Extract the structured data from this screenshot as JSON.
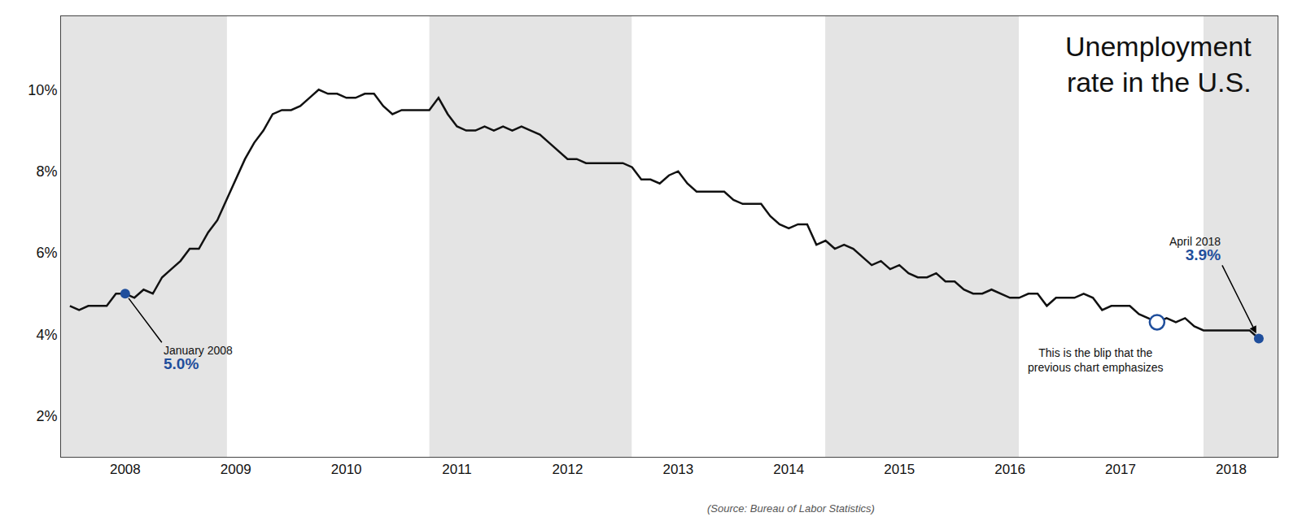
{
  "chart_data": {
    "type": "line",
    "title": "Unemployment\nrate in the U.S.",
    "source": "(Source: Bureau of Labor Statistics)",
    "color": "#111111",
    "grid": false,
    "x": [
      2007.5,
      2007.583333,
      2007.666667,
      2007.75,
      2007.833333,
      2007.916667,
      2008,
      2008.083333,
      2008.166667,
      2008.25,
      2008.333333,
      2008.416667,
      2008.5,
      2008.583333,
      2008.666667,
      2008.75,
      2008.833333,
      2008.916667,
      2009,
      2009.083333,
      2009.166667,
      2009.25,
      2009.333333,
      2009.416667,
      2009.5,
      2009.583333,
      2009.666667,
      2009.75,
      2009.833333,
      2009.916667,
      2010,
      2010.083333,
      2010.166667,
      2010.25,
      2010.333333,
      2010.416667,
      2010.5,
      2010.583333,
      2010.666667,
      2010.75,
      2010.833333,
      2010.916667,
      2011,
      2011.083333,
      2011.166667,
      2011.25,
      2011.333333,
      2011.416667,
      2011.5,
      2011.583333,
      2011.666667,
      2011.75,
      2011.833333,
      2011.916667,
      2012,
      2012.083333,
      2012.166667,
      2012.25,
      2012.333333,
      2012.416667,
      2012.5,
      2012.583333,
      2012.666667,
      2012.75,
      2012.833333,
      2012.916667,
      2013,
      2013.083333,
      2013.166667,
      2013.25,
      2013.333333,
      2013.416667,
      2013.5,
      2013.583333,
      2013.666667,
      2013.75,
      2013.833333,
      2013.916667,
      2014,
      2014.083333,
      2014.166667,
      2014.25,
      2014.333333,
      2014.416667,
      2014.5,
      2014.583333,
      2014.666667,
      2014.75,
      2014.833333,
      2014.916667,
      2015,
      2015.083333,
      2015.166667,
      2015.25,
      2015.333333,
      2015.416667,
      2015.5,
      2015.583333,
      2015.666667,
      2015.75,
      2015.833333,
      2015.916667,
      2016,
      2016.083333,
      2016.166667,
      2016.25,
      2016.333333,
      2016.416667,
      2016.5,
      2016.583333,
      2016.666667,
      2016.75,
      2016.833333,
      2016.916667,
      2017,
      2017.083333,
      2017.166667,
      2017.25,
      2017.333333,
      2017.416667,
      2017.5,
      2017.583333,
      2017.666667,
      2017.75,
      2017.833333,
      2017.916667,
      2018,
      2018.083333,
      2018.166667,
      2018.25
    ],
    "values": [
      4.7,
      4.6,
      4.7,
      4.7,
      4.7,
      5.0,
      5.0,
      4.9,
      5.1,
      5.0,
      5.4,
      5.6,
      5.8,
      6.1,
      6.1,
      6.5,
      6.8,
      7.3,
      7.8,
      8.3,
      8.7,
      9.0,
      9.4,
      9.5,
      9.5,
      9.6,
      9.8,
      10.0,
      9.9,
      9.9,
      9.8,
      9.8,
      9.9,
      9.9,
      9.6,
      9.4,
      9.5,
      9.5,
      9.5,
      9.5,
      9.8,
      9.4,
      9.1,
      9.0,
      9.0,
      9.1,
      9.0,
      9.1,
      9.0,
      9.1,
      9.0,
      8.9,
      8.7,
      8.5,
      8.3,
      8.3,
      8.2,
      8.2,
      8.2,
      8.2,
      8.2,
      8.1,
      7.8,
      7.8,
      7.7,
      7.9,
      8.0,
      7.7,
      7.5,
      7.5,
      7.5,
      7.5,
      7.3,
      7.2,
      7.2,
      7.2,
      6.9,
      6.7,
      6.6,
      6.7,
      6.7,
      6.2,
      6.3,
      6.1,
      6.2,
      6.1,
      5.9,
      5.7,
      5.8,
      5.6,
      5.7,
      5.5,
      5.4,
      5.4,
      5.5,
      5.3,
      5.3,
      5.1,
      5.0,
      5.0,
      5.1,
      5.0,
      4.9,
      4.9,
      5.0,
      5.0,
      4.7,
      4.9,
      4.9,
      4.9,
      5.0,
      4.9,
      4.6,
      4.7,
      4.7,
      4.7,
      4.5,
      4.4,
      4.3,
      4.4,
      4.3,
      4.4,
      4.2,
      4.1,
      4.1,
      4.1,
      4.1,
      4.1,
      4.1,
      3.9
    ],
    "xlim": [
      2007.42,
      2018.42
    ],
    "xticks": [
      2008,
      2009,
      2010,
      2011,
      2012,
      2013,
      2014,
      2015,
      2016,
      2017,
      2018
    ],
    "ylim": [
      1.0,
      11.8
    ],
    "yticks": [
      {
        "value": 2,
        "label": "2%"
      },
      {
        "value": 4,
        "label": "4%"
      },
      {
        "value": 6,
        "label": "6%"
      },
      {
        "value": 8,
        "label": "8%"
      },
      {
        "value": 10,
        "label": "10%"
      }
    ],
    "bands": {
      "color": "#e4e4e4",
      "ranges": [
        [
          2007.42,
          2008.92
        ],
        [
          2010.75,
          2012.58
        ],
        [
          2014.33,
          2016.08
        ],
        [
          2017.75,
          2018.42
        ]
      ]
    },
    "annotations": [
      {
        "x": 2008.0,
        "y": 5.0,
        "label": "January 2008",
        "value_label": "5.0%",
        "marker": "circle",
        "color": "#1f4e9c"
      },
      {
        "x": 2018.25,
        "y": 3.9,
        "label": "April 2018",
        "value_label": "3.9%",
        "marker": "circle",
        "color": "#1f4e9c"
      },
      {
        "x": 2017.33,
        "y": 4.3,
        "label": "This is the blip that the\nprevious chart emphasizes",
        "marker": "circle-open",
        "color": "#1f4e9c"
      }
    ]
  }
}
